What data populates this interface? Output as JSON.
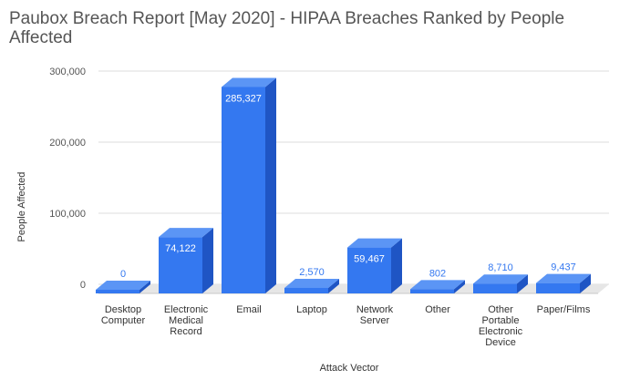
{
  "chart_data": {
    "type": "bar",
    "title": "Paubox Breach Report [May 2020] - HIPAA Breaches Ranked by People Affected",
    "xlabel": "Attack Vector",
    "ylabel": "People Affected",
    "categories": [
      "Desktop Computer",
      "Electronic Medical Record",
      "Email",
      "Laptop",
      "Network Server",
      "Other",
      "Other Portable Electronic Device",
      "Paper/Films"
    ],
    "values": [
      0,
      74122,
      285327,
      2570,
      59467,
      802,
      8710,
      9437
    ],
    "data_labels": [
      "0",
      "74,122",
      "285,327",
      "2,570",
      "59,467",
      "802",
      "8,710",
      "9,437"
    ],
    "yticks": [
      0,
      100000,
      200000,
      300000
    ],
    "ytick_labels": [
      "0",
      "100,000",
      "200,000",
      "300,000"
    ],
    "ylim": [
      0,
      300000
    ],
    "grid": true,
    "legend": "none",
    "style": "3d",
    "colors": {
      "bar_front": "#3478f0",
      "bar_top": "#5b95f5",
      "bar_side": "#1f55c4",
      "label_inside": "#ffffff",
      "label_outside": "#3478f0",
      "gridline": "#dddddd",
      "floor": "#c8c8c8"
    }
  }
}
